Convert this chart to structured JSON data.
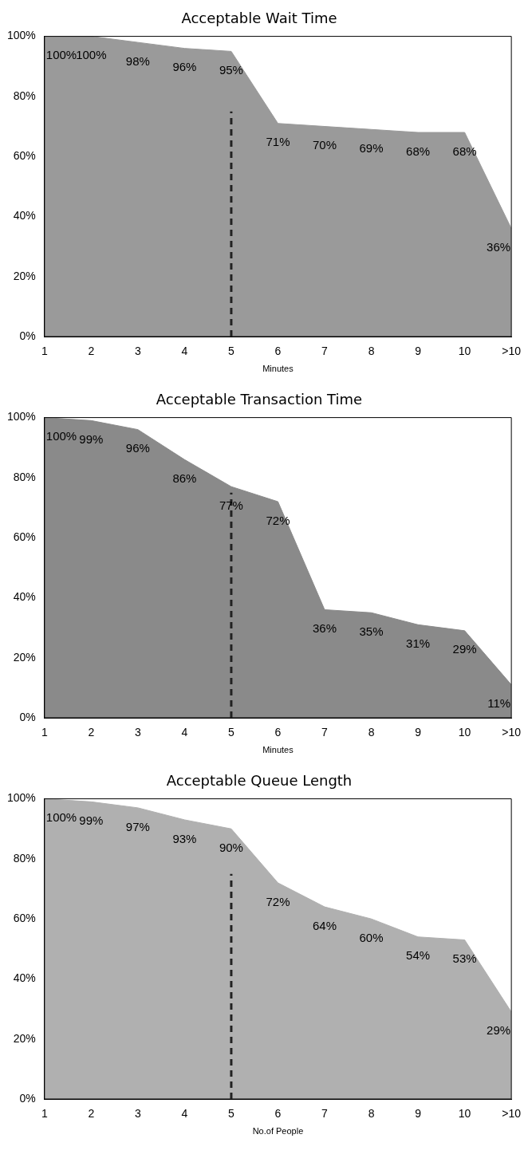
{
  "chart_data": [
    {
      "type": "area",
      "title": "Acceptable Wait Time",
      "xlabel": "Minutes",
      "categories": [
        "1",
        "2",
        "3",
        "4",
        "5",
        "6",
        "7",
        "8",
        "9",
        "10",
        ">10"
      ],
      "series": [
        {
          "color": "#9a9a9a",
          "values": [
            100,
            100,
            98,
            96,
            95,
            71,
            70,
            69,
            68,
            68,
            36
          ],
          "value_labels": [
            "100%",
            "100%",
            "98%",
            "96%",
            "95%",
            "71%",
            "70%",
            "69%",
            "68%",
            "68%",
            "36%"
          ]
        }
      ],
      "ylim": [
        0,
        100
      ],
      "yticks": [
        {
          "value": 0,
          "label": "0%"
        },
        {
          "value": 20,
          "label": "20%"
        },
        {
          "value": 40,
          "label": "40%"
        },
        {
          "value": 60,
          "label": "60%"
        },
        {
          "value": 80,
          "label": "80%"
        },
        {
          "value": 100,
          "label": "100%"
        }
      ],
      "grid": false,
      "marker": "none",
      "ref_lines": [
        {
          "axis": "x",
          "value": "5",
          "line_style": "dashed",
          "color": "#222222"
        }
      ]
    },
    {
      "type": "area",
      "title": "Acceptable Transaction Time",
      "xlabel": "Minutes",
      "categories": [
        "1",
        "2",
        "3",
        "4",
        "5",
        "6",
        "7",
        "8",
        "9",
        "10",
        ">10"
      ],
      "series": [
        {
          "color": "#8a8a8a",
          "values": [
            100,
            99,
            96,
            86,
            77,
            72,
            36,
            35,
            31,
            29,
            11
          ],
          "value_labels": [
            "100%",
            "99%",
            "96%",
            "86%",
            "77%",
            "72%",
            "36%",
            "35%",
            "31%",
            "29%",
            "11%"
          ]
        }
      ],
      "ylim": [
        0,
        100
      ],
      "yticks": [
        {
          "value": 0,
          "label": "0%"
        },
        {
          "value": 20,
          "label": "20%"
        },
        {
          "value": 40,
          "label": "40%"
        },
        {
          "value": 60,
          "label": "60%"
        },
        {
          "value": 80,
          "label": "80%"
        },
        {
          "value": 100,
          "label": "100%"
        }
      ],
      "grid": false,
      "marker": "none",
      "ref_lines": [
        {
          "axis": "x",
          "value": "5",
          "line_style": "dashed",
          "color": "#222222"
        }
      ]
    },
    {
      "type": "area",
      "title": "Acceptable Queue Length",
      "xlabel": "No.of People",
      "categories": [
        "1",
        "2",
        "3",
        "4",
        "5",
        "6",
        "7",
        "8",
        "9",
        "10",
        ">10"
      ],
      "series": [
        {
          "color": "#b0b0b0",
          "values": [
            100,
            99,
            97,
            93,
            90,
            72,
            64,
            60,
            54,
            53,
            29
          ],
          "value_labels": [
            "100%",
            "99%",
            "97%",
            "93%",
            "90%",
            "72%",
            "64%",
            "60%",
            "54%",
            "53%",
            "29%"
          ]
        }
      ],
      "ylim": [
        0,
        100
      ],
      "yticks": [
        {
          "value": 0,
          "label": "0%"
        },
        {
          "value": 20,
          "label": "20%"
        },
        {
          "value": 40,
          "label": "40%"
        },
        {
          "value": 60,
          "label": "60%"
        },
        {
          "value": 80,
          "label": "80%"
        },
        {
          "value": 100,
          "label": "100%"
        }
      ],
      "grid": false,
      "marker": "none",
      "ref_lines": [
        {
          "axis": "x",
          "value": "5",
          "line_style": "dashed",
          "color": "#222222"
        }
      ]
    }
  ]
}
